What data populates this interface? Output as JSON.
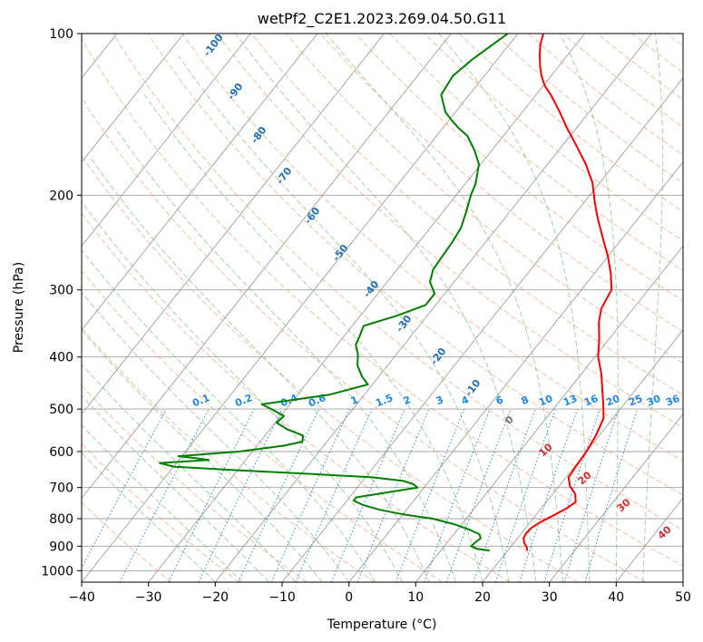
{
  "chart_data": {
    "type": "line",
    "subtype": "skew-T log-P diagram",
    "title": "wetPf2_C2E1.2023.269.04.50.G11",
    "xlabel": "Temperature (°C)",
    "ylabel": "Pressure (hPa)",
    "xlim": [
      -40,
      50
    ],
    "ylim": [
      1050,
      100
    ],
    "y_scale": "log",
    "grid": true,
    "x_ticks": [
      -40,
      -30,
      -20,
      -10,
      0,
      10,
      20,
      30,
      40,
      50
    ],
    "y_ticks": [
      100,
      200,
      300,
      400,
      500,
      600,
      700,
      800,
      900,
      1000
    ],
    "colors": {
      "temperature": "#ff0000",
      "dewpoint": "#008000",
      "dry_adiabats": "#f4a582",
      "moist_adiabats": "#7fbf7f",
      "mixing_ratio": "#1e88e5",
      "isotherms": "#808080",
      "label_dry": "#1f6fb4",
      "label_mix": "#1e88e5",
      "label_moist": "#d32f2f"
    },
    "series": [
      {
        "key": "temperature",
        "color": "#ff0000",
        "points": [
          [
            917,
            22.9
          ],
          [
            905,
            22.5
          ],
          [
            890,
            21.7
          ],
          [
            870,
            20.9
          ],
          [
            850,
            20.7
          ],
          [
            830,
            20.9
          ],
          [
            810,
            21.6
          ],
          [
            790,
            22.6
          ],
          [
            765,
            23.8
          ],
          [
            745,
            24.4
          ],
          [
            720,
            23.4
          ],
          [
            695,
            21.6
          ],
          [
            670,
            20.4
          ],
          [
            640,
            20.2
          ],
          [
            600,
            20.0
          ],
          [
            560,
            19.5
          ],
          [
            520,
            18.6
          ],
          [
            490,
            16.9
          ],
          [
            460,
            15.0
          ],
          [
            430,
            13.0
          ],
          [
            400,
            10.5
          ],
          [
            370,
            8.5
          ],
          [
            345,
            6.5
          ],
          [
            325,
            5.2
          ],
          [
            300,
            4.5
          ],
          [
            280,
            2.5
          ],
          [
            260,
            0.0
          ],
          [
            240,
            -3.0
          ],
          [
            220,
            -6.2
          ],
          [
            205,
            -8.6
          ],
          [
            190,
            -11.0
          ],
          [
            175,
            -14.3
          ],
          [
            160,
            -18.4
          ],
          [
            150,
            -21.4
          ],
          [
            140,
            -24.4
          ],
          [
            130,
            -27.8
          ],
          [
            125,
            -29.8
          ],
          [
            120,
            -31.4
          ],
          [
            115,
            -32.8
          ],
          [
            110,
            -34.1
          ],
          [
            105,
            -35.3
          ],
          [
            100,
            -36.2
          ]
        ]
      },
      {
        "key": "dewpoint",
        "color": "#008000",
        "points": [
          [
            917,
            17.3
          ],
          [
            910,
            15.2
          ],
          [
            900,
            14.0
          ],
          [
            885,
            14.2
          ],
          [
            870,
            14.5
          ],
          [
            855,
            13.8
          ],
          [
            840,
            12.0
          ],
          [
            820,
            9.0
          ],
          [
            800,
            5.0
          ],
          [
            785,
            0.0
          ],
          [
            770,
            -4.0
          ],
          [
            755,
            -7.0
          ],
          [
            740,
            -9.0
          ],
          [
            730,
            -9.0
          ],
          [
            715,
            -5.0
          ],
          [
            700,
            -1.0
          ],
          [
            690,
            -2.0
          ],
          [
            680,
            -4.0
          ],
          [
            670,
            -9.0
          ],
          [
            660,
            -19.0
          ],
          [
            650,
            -30.0
          ],
          [
            640,
            -40.0
          ],
          [
            630,
            -42.5
          ],
          [
            622,
            -35.5
          ],
          [
            617,
            -37.7
          ],
          [
            612,
            -40.5
          ],
          [
            600,
            -32.0
          ],
          [
            585,
            -26.0
          ],
          [
            575,
            -23.7
          ],
          [
            560,
            -24.3
          ],
          [
            545,
            -27.5
          ],
          [
            530,
            -29.8
          ],
          [
            515,
            -29.5
          ],
          [
            500,
            -32.2
          ],
          [
            490,
            -34.2
          ],
          [
            470,
            -25.2
          ],
          [
            450,
            -20.7
          ],
          [
            435,
            -22.5
          ],
          [
            415,
            -24.5
          ],
          [
            395,
            -25.8
          ],
          [
            380,
            -27.2
          ],
          [
            365,
            -27.7
          ],
          [
            350,
            -28.3
          ],
          [
            335,
            -24.5
          ],
          [
            320,
            -21.5
          ],
          [
            305,
            -21.5
          ],
          [
            290,
            -23.6
          ],
          [
            275,
            -24.6
          ],
          [
            260,
            -24.8
          ],
          [
            245,
            -25.0
          ],
          [
            230,
            -25.4
          ],
          [
            215,
            -26.5
          ],
          [
            200,
            -27.8
          ],
          [
            190,
            -28.5
          ],
          [
            175,
            -30.3
          ],
          [
            165,
            -32.6
          ],
          [
            155,
            -35.4
          ],
          [
            150,
            -37.6
          ],
          [
            145,
            -39.6
          ],
          [
            140,
            -41.5
          ],
          [
            130,
            -44.2
          ],
          [
            120,
            -44.7
          ],
          [
            112,
            -43.8
          ],
          [
            105,
            -42.5
          ],
          [
            100,
            -41.5
          ]
        ]
      }
    ],
    "dry_adiabat_labels": [
      "-100",
      "-90",
      "-80",
      "-70",
      "-60",
      "-50",
      "-40",
      "-30",
      "-20",
      "-10"
    ],
    "mixing_ratio_labels": [
      "0.1",
      "0.2",
      "0.4",
      "0.6",
      "1",
      "1.5",
      "2",
      "3",
      "4",
      "6",
      "8",
      "10",
      "13",
      "16",
      "20",
      "25",
      "30",
      "36"
    ],
    "moist_adiabat_labels": [
      "0",
      "10",
      "20",
      "30",
      "40"
    ]
  }
}
